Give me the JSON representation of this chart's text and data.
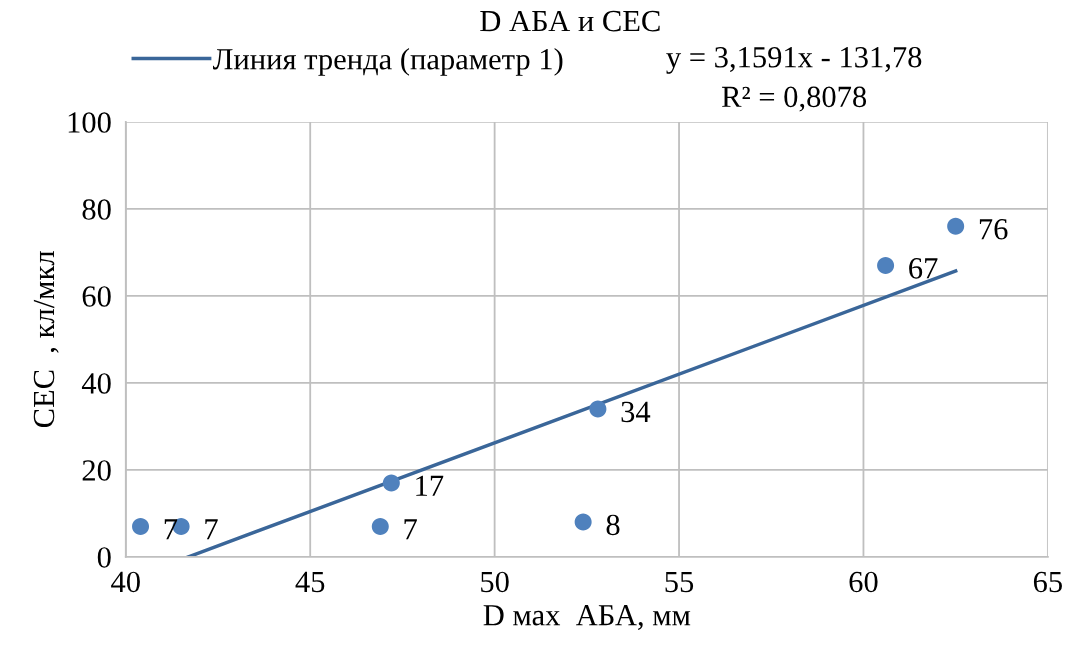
{
  "chart_data": {
    "type": "scatter",
    "title": "D АБА и CEC",
    "xlabel": "D мах  АБА, мм",
    "ylabel": "CEC  , кл/мкл",
    "xlim": [
      40,
      65
    ],
    "xticks": [
      40,
      45,
      50,
      55,
      60,
      65
    ],
    "ylim": [
      0,
      100
    ],
    "yticks": [
      0,
      20,
      40,
      60,
      80,
      100
    ],
    "grid": true,
    "legend": "top",
    "series": [
      {
        "marker": "circle",
        "color": "#4f81bd",
        "x": [
          40.4,
          41.5,
          46.9,
          47.2,
          52.4,
          52.8,
          60.6,
          62.5
        ],
        "values": [
          7,
          7,
          7,
          17,
          8,
          34,
          67,
          76
        ],
        "data_labels": true
      },
      {
        "type": "line",
        "name": "Линия тренда (параметр 1)",
        "color": "#3a6699",
        "x": [
          41.7,
          62.5
        ],
        "values": [
          0,
          65.7
        ],
        "line_style": "solid"
      }
    ],
    "annotations": [
      "y = 3,1591x - 131,78",
      "R² = 0,8078"
    ]
  }
}
